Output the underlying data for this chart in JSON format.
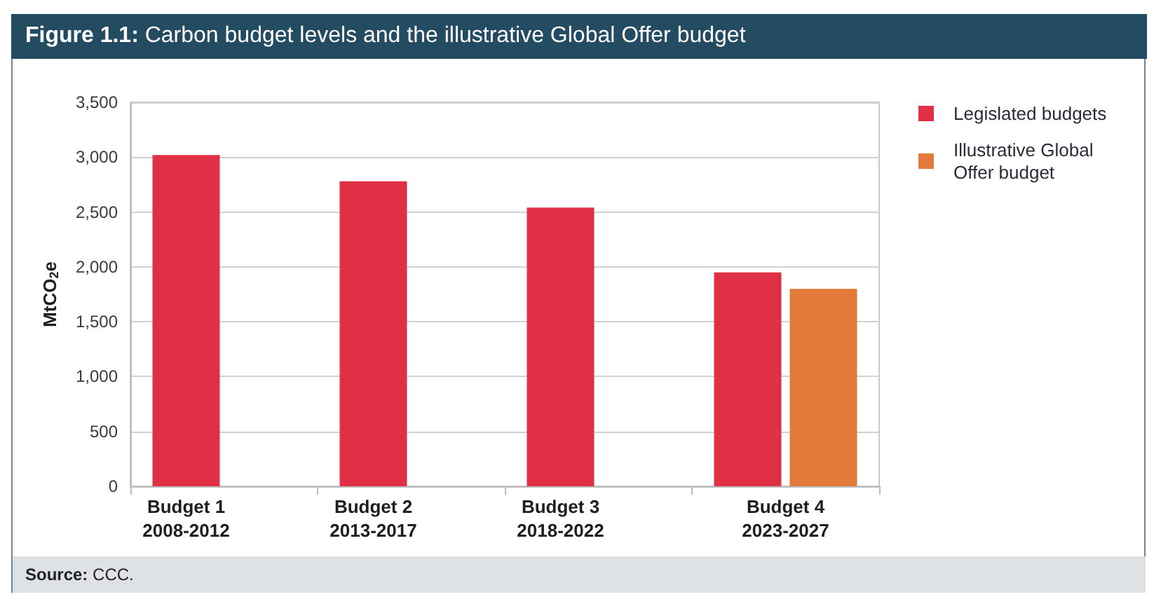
{
  "chart_data": {
    "type": "bar",
    "title": "Figure 1.1: Carbon budget levels and the illustrative Global Offer budget",
    "ylabel": "MtCO$_{2}$e",
    "categories": [
      "Budget 1\n2008-2012",
      "Budget 2\n2013-2017",
      "Budget 3\n2018-2022",
      "Budget 4\n2023-2027"
    ],
    "series": [
      {
        "name": "Legislated budgets",
        "color": "#e03045",
        "values": [
          3020,
          2780,
          2540,
          1950
        ]
      },
      {
        "name": "Illustrative Global Offer budget",
        "color": "#e27a3b",
        "values": [
          null,
          null,
          null,
          1800
        ]
      }
    ],
    "ylim": [
      0,
      3500
    ],
    "yticks": [
      0,
      500,
      {
        "value": 1000,
        "label": "1,000"
      },
      {
        "value": 1500,
        "label": "1,500"
      },
      {
        "value": 2000,
        "label": "2,000"
      },
      {
        "value": 2500,
        "label": "2,500"
      },
      {
        "value": 3000,
        "label": "3,000"
      },
      {
        "value": 3500,
        "label": "3,500"
      }
    ],
    "grid": "y",
    "legend": "right",
    "annotations": [
      "Source: CCC."
    ]
  }
}
